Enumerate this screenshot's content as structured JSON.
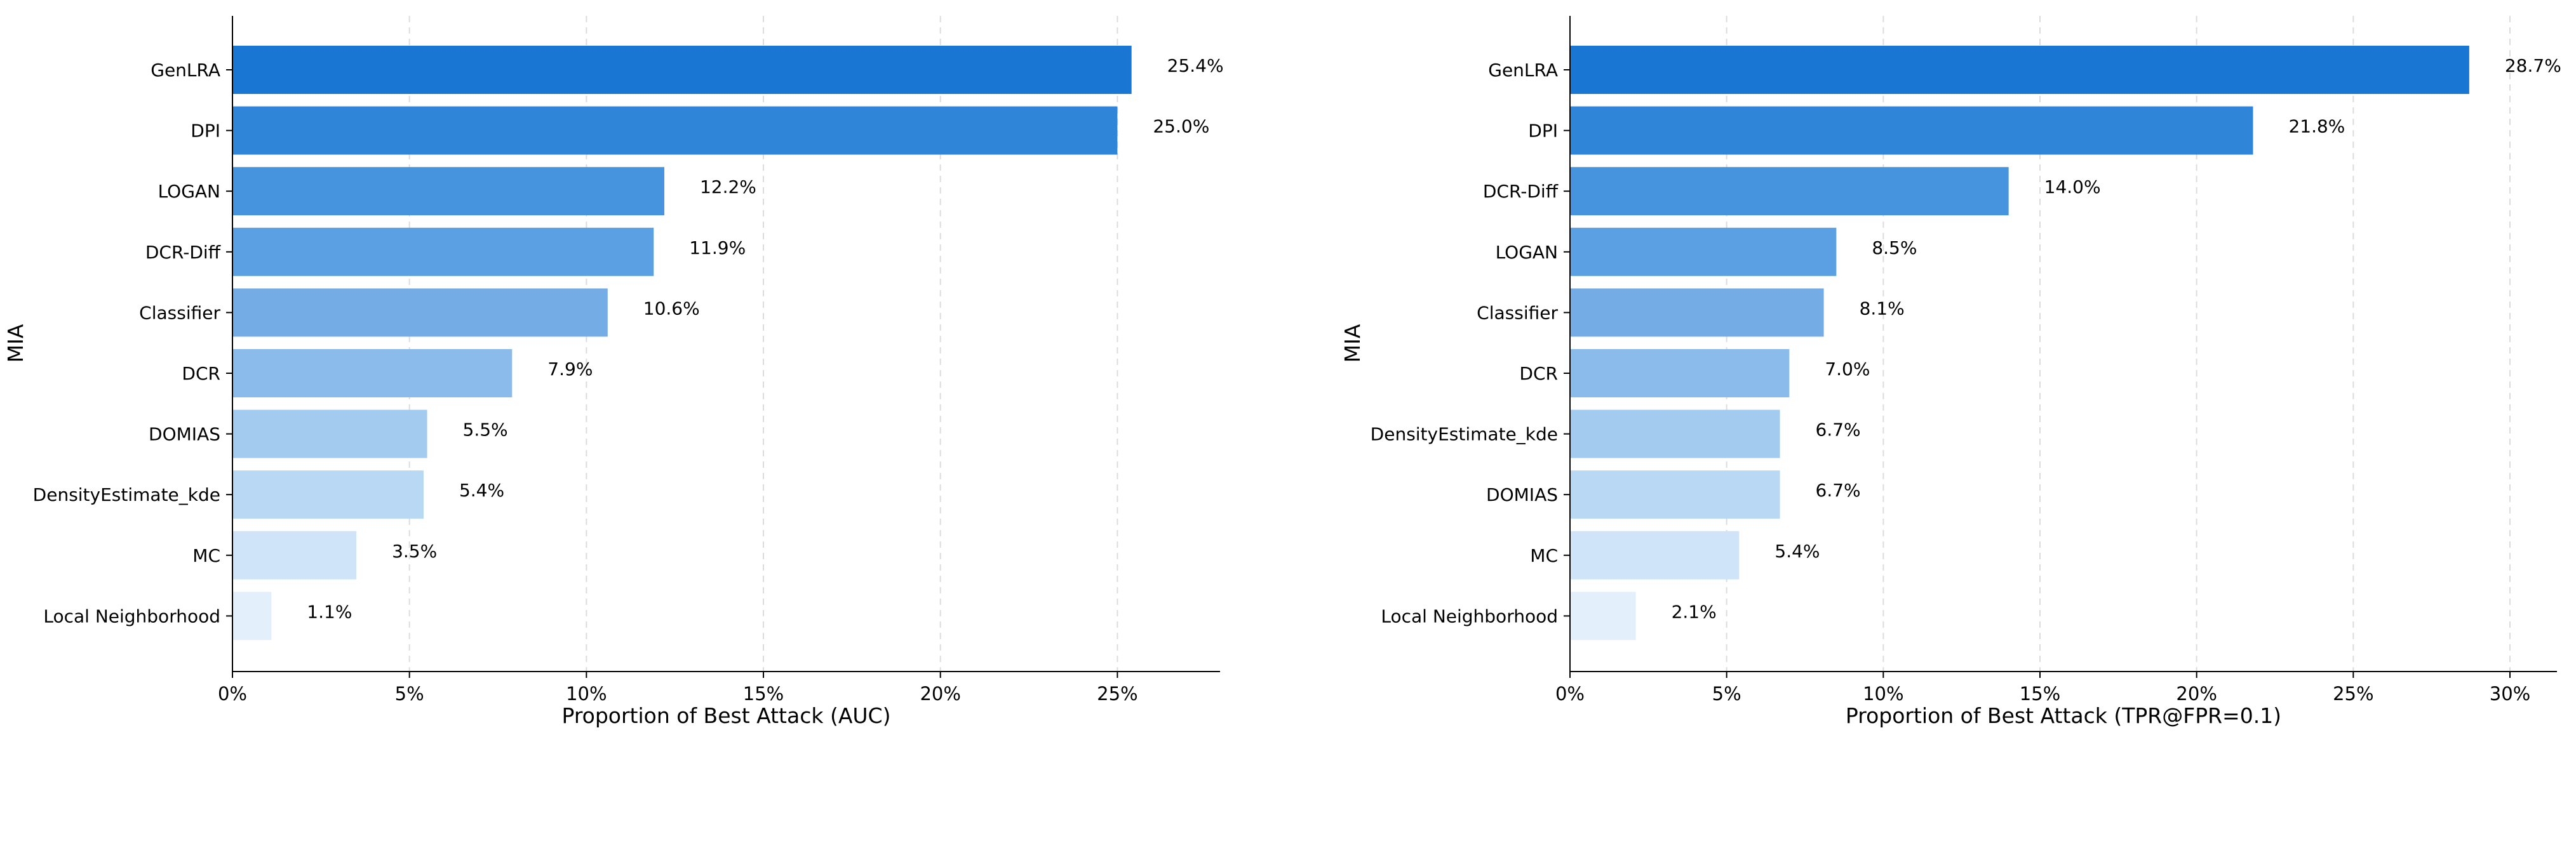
{
  "chart_data": [
    {
      "type": "bar",
      "orientation": "horizontal",
      "title": "",
      "xlabel": "Proportion of Best Attack (AUC)",
      "ylabel": "MIA",
      "categories": [
        "GenLRA",
        "DPI",
        "LOGAN",
        "DCR-Diff",
        "Classifier",
        "DCR",
        "DOMIAS",
        "DensityEstimate_kde",
        "MC",
        "Local Neighborhood"
      ],
      "values": [
        25.4,
        25.0,
        12.2,
        11.9,
        10.6,
        7.9,
        5.5,
        5.4,
        3.5,
        1.1
      ],
      "data_labels": [
        "25.4%",
        "25.0%",
        "12.2%",
        "11.9%",
        "10.6%",
        "7.9%",
        "5.5%",
        "5.4%",
        "3.5%",
        "1.1%"
      ],
      "xticks": [
        0,
        5,
        10,
        15,
        20,
        25
      ],
      "xtick_labels": [
        "0%",
        "5%",
        "10%",
        "15%",
        "20%",
        "25%"
      ],
      "xlim": [
        0,
        27.9
      ],
      "grid": "vertical dashed",
      "colors": [
        "#1976d2",
        "#2f86d8",
        "#4794de",
        "#5aa0e2",
        "#74ade6",
        "#8abbeb",
        "#a3cbf0",
        "#b8d8f3",
        "#cfe4f8",
        "#e3effb"
      ]
    },
    {
      "type": "bar",
      "orientation": "horizontal",
      "title": "",
      "xlabel": "Proportion of Best Attack (TPR@FPR=0.1)",
      "ylabel": "MIA",
      "categories": [
        "GenLRA",
        "DPI",
        "DCR-Diff",
        "LOGAN",
        "Classifier",
        "DCR",
        "DensityEstimate_kde",
        "DOMIAS",
        "MC",
        "Local Neighborhood"
      ],
      "values": [
        28.7,
        21.8,
        14.0,
        8.5,
        8.1,
        7.0,
        6.7,
        6.7,
        5.4,
        2.1
      ],
      "data_labels": [
        "28.7%",
        "21.8%",
        "14.0%",
        "8.5%",
        "8.1%",
        "7.0%",
        "6.7%",
        "6.7%",
        "5.4%",
        "2.1%"
      ],
      "xticks": [
        0,
        5,
        10,
        15,
        20,
        25,
        30
      ],
      "xtick_labels": [
        "0%",
        "5%",
        "10%",
        "15%",
        "20%",
        "25%",
        "30%"
      ],
      "xlim": [
        0,
        31.5
      ],
      "grid": "vertical dashed",
      "colors": [
        "#1976d2",
        "#2f86d8",
        "#4794de",
        "#5aa0e2",
        "#74ade6",
        "#8abbeb",
        "#a3cbf0",
        "#b8d8f3",
        "#cfe4f8",
        "#e3effb"
      ]
    }
  ]
}
